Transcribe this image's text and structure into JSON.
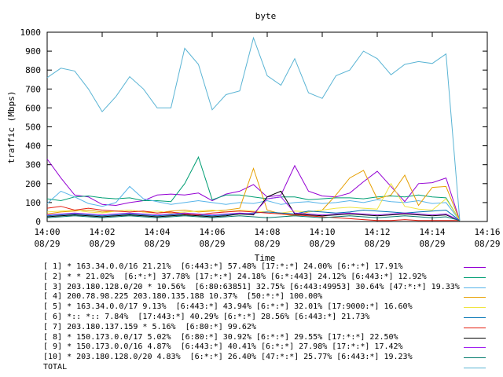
{
  "chart_data": {
    "type": "line",
    "title": "byte",
    "xlabel": "Time",
    "ylabel": "traffic (Mbps)",
    "xlim": [
      "14:00",
      "14:16"
    ],
    "ylim": [
      0,
      1000
    ],
    "yticks": [
      "0",
      "100",
      "200",
      "300",
      "400",
      "500",
      "600",
      "700",
      "800",
      "900",
      "1000"
    ],
    "xticks": [
      {
        "time": "14:00",
        "date": "08/29"
      },
      {
        "time": "14:02",
        "date": "08/29"
      },
      {
        "time": "14:04",
        "date": "08/29"
      },
      {
        "time": "14:06",
        "date": "08/29"
      },
      {
        "time": "14:08",
        "date": "08/29"
      },
      {
        "time": "14:10",
        "date": "08/29"
      },
      {
        "time": "14:12",
        "date": "08/29"
      },
      {
        "time": "14:14",
        "date": "08/29"
      },
      {
        "time": "14:16",
        "date": "08/29"
      }
    ],
    "grid": false,
    "legend_placement": "bottom",
    "x_minutes": [
      0,
      0.5,
      1,
      1.5,
      2,
      2.5,
      3,
      3.5,
      4,
      4.5,
      5,
      5.5,
      6,
      6.5,
      7,
      7.5,
      8,
      8.5,
      9,
      9.5,
      10,
      10.5,
      11,
      11.5,
      12,
      12.5,
      13,
      13.5,
      14,
      14.5,
      15
    ],
    "series": [
      {
        "name": "[ 1] * 163.34.0.0/16 21.21%  [6:443:*] 57.48% [17:*:*] 24.00% [6:*:*] 17.91%",
        "color": "#9400d3",
        "values": [
          330,
          230,
          140,
          130,
          90,
          85,
          100,
          110,
          140,
          145,
          140,
          150,
          110,
          145,
          160,
          195,
          130,
          140,
          295,
          160,
          135,
          130,
          150,
          210,
          265,
          185,
          105,
          200,
          205,
          230,
          5
        ]
      },
      {
        "name": "[ 2] * * 21.02%  [6:*:*] 37.78% [17:*:*] 24.18% [6:*:443] 24.12% [6:443:*] 12.92%",
        "color": "#009e73",
        "values": [
          120,
          110,
          130,
          135,
          125,
          120,
          125,
          110,
          110,
          105,
          200,
          340,
          115,
          140,
          140,
          130,
          120,
          130,
          130,
          115,
          120,
          125,
          125,
          120,
          130,
          135,
          130,
          140,
          130,
          125,
          5
        ]
      },
      {
        "name": "[ 3] 203.180.128.0/20 * 10.56%  [6:80:63851] 32.75% [6:443:49953] 30.64% [47:*:*] 19.33%",
        "color": "#56b4e9",
        "values": [
          95,
          160,
          130,
          95,
          80,
          100,
          185,
          120,
          105,
          90,
          100,
          110,
          100,
          90,
          100,
          95,
          110,
          90,
          100,
          105,
          95,
          100,
          110,
          100,
          115,
          105,
          100,
          110,
          95,
          100,
          5
        ]
      },
      {
        "name": "[ 4] 200.78.98.225 203.180.135.188 10.37%  [50:*:*] 100.00%",
        "color": "#e69f00",
        "values": [
          40,
          50,
          55,
          60,
          50,
          55,
          60,
          50,
          45,
          55,
          60,
          50,
          55,
          60,
          70,
          280,
          60,
          40,
          30,
          50,
          60,
          140,
          230,
          270,
          120,
          140,
          245,
          85,
          180,
          185,
          5
        ]
      },
      {
        "name": "[ 5] * 163.34.0.0/17 9.13%  [6:443:*] 43.94% [6:*:*] 32.01% [17:9000:*] 16.60%",
        "color": "#f0e442",
        "values": [
          50,
          55,
          60,
          50,
          45,
          55,
          60,
          50,
          55,
          45,
          50,
          55,
          60,
          50,
          60,
          55,
          50,
          45,
          55,
          50,
          60,
          70,
          75,
          70,
          65,
          200,
          80,
          65,
          60,
          120,
          5
        ]
      },
      {
        "name": "[ 6] *:: *:: 7.84%  [17:443:*] 40.29% [6:*:*] 28.56% [6:443:*] 21.73%",
        "color": "#0072b2",
        "values": [
          30,
          35,
          40,
          35,
          30,
          35,
          40,
          35,
          30,
          35,
          40,
          35,
          30,
          35,
          40,
          45,
          50,
          45,
          40,
          55,
          50,
          45,
          50,
          60,
          55,
          50,
          45,
          50,
          55,
          60,
          5
        ]
      },
      {
        "name": "[ 7] 203.180.137.159 * 5.16%  [6:80:*] 99.62%",
        "color": "#e51e10",
        "values": [
          70,
          80,
          60,
          70,
          60,
          55,
          50,
          55,
          45,
          50,
          40,
          35,
          45,
          50,
          55,
          50,
          45,
          40,
          35,
          30,
          25,
          20,
          15,
          10,
          5,
          5,
          10,
          5,
          5,
          5,
          5
        ]
      },
      {
        "name": "[ 8] * 150.173.0.0/17 5.02%  [6:80:*] 30.92% [6:*:*] 29.55% [17:*:*] 22.50%",
        "color": "#000000",
        "values": [
          25,
          30,
          35,
          30,
          25,
          30,
          35,
          30,
          25,
          30,
          35,
          30,
          25,
          30,
          40,
          35,
          130,
          160,
          40,
          35,
          30,
          35,
          40,
          35,
          30,
          35,
          40,
          35,
          30,
          35,
          5
        ]
      },
      {
        "name": "[ 9] * 150.173.0.0/16 4.87%  [6:443:*] 40.41% [6:*:*] 27.98% [17:*:*] 17.42%",
        "color": "#a020f0",
        "values": [
          35,
          40,
          45,
          40,
          35,
          40,
          45,
          40,
          35,
          40,
          45,
          40,
          35,
          40,
          45,
          40,
          120,
          130,
          45,
          40,
          35,
          40,
          45,
          40,
          35,
          40,
          45,
          40,
          35,
          40,
          5
        ]
      },
      {
        "name": "[10] * 203.180.128.0/20 4.83%  [6:*:*] 26.40% [47:*:*] 25.77% [6:443:*] 19.23%",
        "color": "#00796b",
        "values": [
          20,
          25,
          30,
          25,
          20,
          25,
          30,
          25,
          20,
          25,
          30,
          25,
          20,
          25,
          30,
          25,
          20,
          25,
          30,
          25,
          20,
          25,
          30,
          25,
          20,
          25,
          30,
          25,
          20,
          25,
          5
        ]
      },
      {
        "name": "TOTAL",
        "color": "#5ab4d4",
        "values": [
          760,
          810,
          795,
          700,
          580,
          660,
          765,
          700,
          600,
          600,
          915,
          830,
          590,
          670,
          690,
          970,
          770,
          720,
          860,
          680,
          650,
          770,
          800,
          900,
          860,
          775,
          830,
          845,
          835,
          885,
          5
        ]
      }
    ]
  }
}
